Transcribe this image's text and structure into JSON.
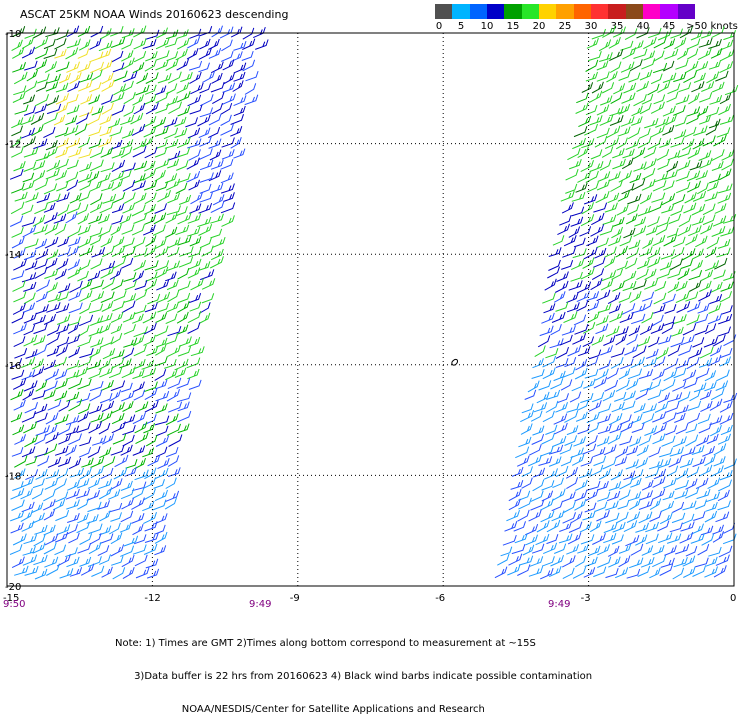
{
  "title": "ASCAT 25KM NOAA Winds 20160623 descending",
  "legend": {
    "colors": [
      "#505050",
      "#00b4ff",
      "#0064ff",
      "#0000c8",
      "#00a000",
      "#28e628",
      "#ffd200",
      "#ffa000",
      "#ff6400",
      "#ff3232",
      "#c81e1e",
      "#8b4a1a",
      "#ff00c8",
      "#b400ff",
      "#6400c8"
    ],
    "labels": [
      "0",
      "5",
      "10",
      "15",
      "20",
      "25",
      "30",
      "35",
      "40",
      "45",
      ">50 knots"
    ]
  },
  "map": {
    "lon_ticks": [
      "-15",
      "-12",
      "-9",
      "-6",
      "-3",
      "0"
    ],
    "lat_ticks": [
      "-10",
      "-12",
      "-14",
      "-16",
      "-18",
      "-20"
    ],
    "time_labels": [
      "9:50",
      "9:49",
      "9:49"
    ],
    "lon_range": [
      -15,
      0
    ],
    "lat_range": [
      -20,
      -10
    ],
    "barb_colors": {
      "calm_cyan": "#1e9bff",
      "light_blue": "#2850ff",
      "dark_blue": "#0000c0",
      "green": "#00b400",
      "light_green": "#28d228",
      "yellow": "#f0e028",
      "dark_green": "#006400"
    }
  },
  "notes": [
    "Note: 1) Times are GMT 2)Times along bottom correspond to measurement at ~15S",
    "      3)Data buffer is 22 hrs from 20160623 4) Black wind barbs indicate possible contamination",
    "                     NOAA/NESDIS/Center for Satellite Applications and Research"
  ]
}
